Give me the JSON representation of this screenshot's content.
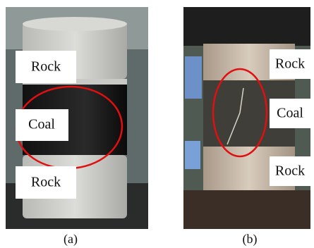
{
  "panels": [
    {
      "labels": [
        "Rock",
        "Coal",
        "Rock"
      ],
      "caption": "(a)"
    },
    {
      "labels": [
        "Rock",
        "Coal",
        "Rock"
      ],
      "caption": "(b)"
    }
  ]
}
